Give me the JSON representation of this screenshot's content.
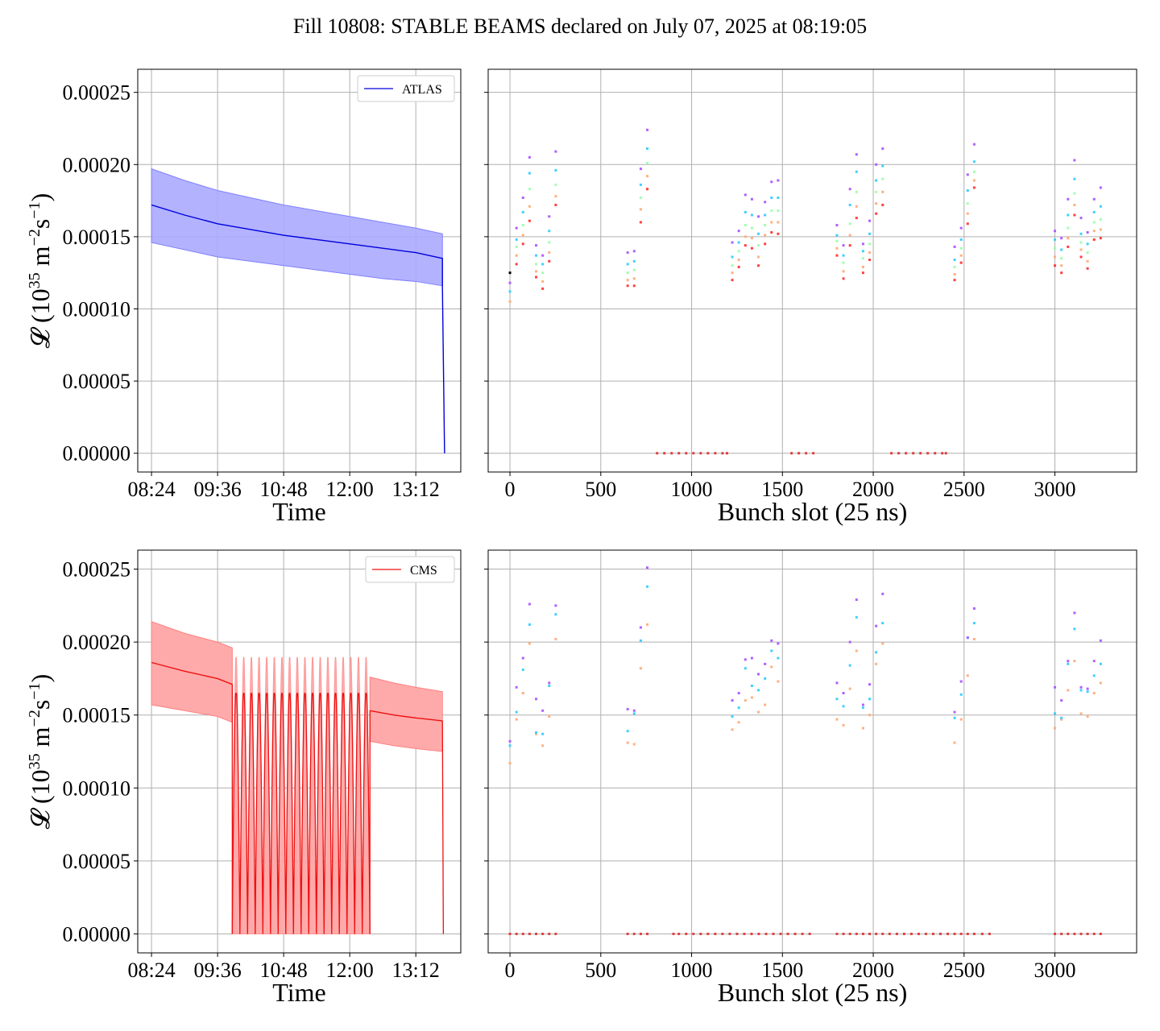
{
  "figure": {
    "title": "Fill 10808: STABLE BEAMS declared on July 07, 2025 at 08:19:05"
  },
  "colors": {
    "atlas": "#0000dd",
    "atlas_band": "#aaaaff",
    "cms": "#ee1111",
    "cms_band": "#ffaaaa",
    "grid": "#b0b0b0"
  },
  "chart_data": [
    {
      "type": "line",
      "legend": "ATLAS",
      "legend_position": "top-right",
      "xlabel": "Time",
      "ylabel_parts": [
        "𝓛 (10",
        "35",
        " m",
        "−2",
        "s",
        "−1",
        ")"
      ],
      "x_ticks": [
        "08:24",
        "09:36",
        "10:48",
        "12:00",
        "13:12"
      ],
      "y_ticks": [
        "0.00000",
        "0.00005",
        "0.00010",
        "0.00015",
        "0.00020",
        "0.00025"
      ],
      "ylim": [
        -1.3e-05,
        0.000266
      ],
      "xlim": [
        "08:09",
        "14:01"
      ],
      "grid": true,
      "series": [
        {
          "name": "ATLAS",
          "x": [
            "08:24",
            "09:00",
            "09:36",
            "10:12",
            "10:48",
            "11:24",
            "12:00",
            "12:36",
            "13:12",
            "13:41",
            "13:41",
            "13:42"
          ],
          "y": [
            0.000172,
            0.000165,
            0.000159,
            0.000155,
            0.000151,
            0.000148,
            0.000145,
            0.000142,
            0.000139,
            0.000135,
            0.000115,
            0.0
          ]
        },
        {
          "name": "ATLAS band upper",
          "x": [
            "08:24",
            "09:00",
            "09:36",
            "10:12",
            "10:48",
            "11:24",
            "12:00",
            "12:36",
            "13:12",
            "13:41"
          ],
          "y": [
            0.000197,
            0.000189,
            0.000182,
            0.000177,
            0.000172,
            0.000168,
            0.000164,
            0.00016,
            0.000156,
            0.000152
          ]
        },
        {
          "name": "ATLAS band lower",
          "x": [
            "08:24",
            "09:00",
            "09:36",
            "10:12",
            "10:48",
            "11:24",
            "12:00",
            "12:36",
            "13:12",
            "13:41"
          ],
          "y": [
            0.000146,
            0.000141,
            0.000136,
            0.000133,
            0.00013,
            0.000127,
            0.000124,
            0.000121,
            0.000119,
            0.000116
          ]
        }
      ]
    },
    {
      "type": "scatter",
      "xlabel": "Bunch slot (25 ns)",
      "x_ticks": [
        "0",
        "500",
        "1000",
        "1500",
        "2000",
        "2500",
        "3000"
      ],
      "xlim": [
        -120,
        3450
      ],
      "ylim": [
        -1.3e-05,
        0.000266
      ],
      "grid": true,
      "groups": [
        {
          "x": 0,
          "y": [
            0.000105,
            0.000112,
            0.000118,
            0.000125
          ]
        },
        {
          "x": 36,
          "y": [
            0.000131,
            0.000137,
            0.000143,
            0.000148,
            0.000156
          ]
        },
        {
          "x": 72,
          "y": [
            0.000145,
            0.000151,
            0.000158,
            0.000167,
            0.000177
          ]
        },
        {
          "x": 108,
          "y": [
            0.000161,
            0.000171,
            0.000183,
            0.000194,
            0.000205
          ]
        },
        {
          "x": 144,
          "y": [
            0.000122,
            0.000126,
            0.000131,
            0.000137,
            0.000144
          ]
        },
        {
          "x": 180,
          "y": [
            0.000114,
            0.000119,
            0.000125,
            0.000131,
            0.000137
          ]
        },
        {
          "x": 216,
          "y": [
            0.000133,
            0.000139,
            0.000146,
            0.000154,
            0.000164
          ]
        },
        {
          "x": 252,
          "y": [
            0.000172,
            0.000178,
            0.000186,
            0.000196,
            0.000209
          ]
        },
        {
          "x": 648,
          "y": [
            0.000116,
            0.00012,
            0.000125,
            0.000131,
            0.000139
          ]
        },
        {
          "x": 684,
          "y": [
            0.000116,
            0.000121,
            0.000127,
            0.000133,
            0.00014
          ]
        },
        {
          "x": 720,
          "y": [
            0.00016,
            0.000169,
            0.000177,
            0.000186,
            0.000197
          ]
        },
        {
          "x": 756,
          "y": [
            0.000183,
            0.000192,
            0.000201,
            0.000211,
            0.000224
          ]
        },
        {
          "x": 1224,
          "y": [
            0.00012,
            0.000125,
            0.00013,
            0.000136,
            0.000146
          ]
        },
        {
          "x": 1260,
          "y": [
            0.000129,
            0.000134,
            0.00014,
            0.000146,
            0.000154
          ]
        },
        {
          "x": 1296,
          "y": [
            0.000144,
            0.00015,
            0.000158,
            0.000167,
            0.000179
          ]
        },
        {
          "x": 1332,
          "y": [
            0.000142,
            0.000149,
            0.000156,
            0.000165,
            0.000176
          ]
        },
        {
          "x": 1368,
          "y": [
            0.00013,
            0.000136,
            0.000144,
            0.000152,
            0.000164
          ]
        },
        {
          "x": 1404,
          "y": [
            0.000145,
            0.000151,
            0.000158,
            0.000165,
            0.000174
          ]
        },
        {
          "x": 1440,
          "y": [
            0.000153,
            0.00016,
            0.000168,
            0.000177,
            0.000188
          ]
        },
        {
          "x": 1476,
          "y": [
            0.000152,
            0.00016,
            0.000168,
            0.000177,
            0.000189
          ]
        },
        {
          "x": 1800,
          "y": [
            0.000137,
            0.000142,
            0.000147,
            0.000151,
            0.000158
          ]
        },
        {
          "x": 1836,
          "y": [
            0.000121,
            0.000126,
            0.000132,
            0.000137,
            0.000144
          ]
        },
        {
          "x": 1872,
          "y": [
            0.000144,
            0.000151,
            0.000159,
            0.000172,
            0.000183
          ]
        },
        {
          "x": 1908,
          "y": [
            0.000163,
            0.000171,
            0.000181,
            0.000195,
            0.000207
          ]
        },
        {
          "x": 1944,
          "y": [
            0.000125,
            0.000129,
            0.000135,
            0.00014,
            0.000145
          ]
        },
        {
          "x": 1980,
          "y": [
            0.000134,
            0.000139,
            0.000145,
            0.000152,
            0.000161
          ]
        },
        {
          "x": 2016,
          "y": [
            0.000166,
            0.000173,
            0.000181,
            0.000189,
            0.0002
          ]
        },
        {
          "x": 2052,
          "y": [
            0.000172,
            0.000181,
            0.00019,
            0.000199,
            0.000211
          ]
        },
        {
          "x": 2448,
          "y": [
            0.00012,
            0.000124,
            0.000129,
            0.000134,
            0.000143
          ]
        },
        {
          "x": 2484,
          "y": [
            0.000132,
            0.000137,
            0.000142,
            0.000148,
            0.000156
          ]
        },
        {
          "x": 2520,
          "y": [
            0.000159,
            0.000166,
            0.000173,
            0.000182,
            0.000193
          ]
        },
        {
          "x": 2556,
          "y": [
            0.000184,
            0.000189,
            0.000195,
            0.000202,
            0.000214
          ]
        },
        {
          "x": 3000,
          "y": [
            0.00013,
            0.000136,
            0.000142,
            0.000148,
            0.000154
          ]
        },
        {
          "x": 3036,
          "y": [
            0.000125,
            0.00013,
            0.000135,
            0.000141,
            0.000149
          ]
        },
        {
          "x": 3072,
          "y": [
            0.000143,
            0.000149,
            0.000156,
            0.000165,
            0.000176
          ]
        },
        {
          "x": 3108,
          "y": [
            0.000165,
            0.000172,
            0.00018,
            0.00019,
            0.000203
          ]
        },
        {
          "x": 3144,
          "y": [
            0.000136,
            0.000141,
            0.000146,
            0.000152,
            0.000163
          ]
        },
        {
          "x": 3180,
          "y": [
            0.000128,
            0.000133,
            0.000139,
            0.000145,
            0.000153
          ]
        },
        {
          "x": 3216,
          "y": [
            0.000148,
            0.000154,
            0.00016,
            0.000167,
            0.000176
          ]
        },
        {
          "x": 3252,
          "y": [
            0.000149,
            0.000155,
            0.000162,
            0.000171,
            0.000184
          ]
        }
      ],
      "zeros": [
        810,
        850,
        890,
        930,
        970,
        1010,
        1050,
        1090,
        1130,
        1170,
        1195,
        1550,
        1590,
        1630,
        1670,
        2100,
        2140,
        2180,
        2220,
        2260,
        2300,
        2340,
        2380,
        2400
      ]
    },
    {
      "type": "line",
      "legend": "CMS",
      "legend_position": "top-right",
      "xlabel": "Time",
      "ylabel_parts": [
        "𝓛 (10",
        "35",
        " m",
        "−2",
        "s",
        "−1",
        ")"
      ],
      "x_ticks": [
        "08:24",
        "09:36",
        "10:48",
        "12:00",
        "13:12"
      ],
      "y_ticks": [
        "0.00000",
        "0.00005",
        "0.00010",
        "0.00015",
        "0.00020",
        "0.00025"
      ],
      "ylim": [
        -1.3e-05,
        0.000263
      ],
      "xlim": [
        "08:09",
        "14:01"
      ],
      "grid": true,
      "stable": [
        {
          "x": [
            "08:24",
            "09:00",
            "09:36",
            "09:52"
          ],
          "y": [
            0.000186,
            0.00018,
            0.000175,
            0.000171
          ]
        },
        {
          "x": [
            "12:22",
            "12:48",
            "13:12",
            "13:41"
          ],
          "y": [
            0.000153,
            0.00015,
            0.000148,
            0.000146
          ]
        }
      ],
      "band_upper": [
        {
          "x": [
            "08:24",
            "09:00",
            "09:36",
            "09:52"
          ],
          "y": [
            0.000214,
            0.000206,
            0.0002,
            0.000196
          ]
        },
        {
          "x": [
            "12:22",
            "12:48",
            "13:12",
            "13:41"
          ],
          "y": [
            0.000176,
            0.000172,
            0.000169,
            0.000166
          ]
        }
      ],
      "band_lower": [
        {
          "x": [
            "08:24",
            "09:00",
            "09:36",
            "09:52"
          ],
          "y": [
            0.000157,
            0.000153,
            0.000149,
            0.000145
          ]
        },
        {
          "x": [
            "12:22",
            "12:48",
            "13:12",
            "13:41"
          ],
          "y": [
            0.000132,
            0.000129,
            0.000127,
            0.000125
          ]
        }
      ],
      "oscillation": {
        "x_start": "09:52",
        "x_end": "12:22",
        "cycles": 18,
        "peak": 0.000163,
        "band_peak": 0.000188
      },
      "end_drop": {
        "x": "13:42",
        "y": 0.0
      }
    },
    {
      "type": "scatter",
      "xlabel": "Bunch slot (25 ns)",
      "x_ticks": [
        "0",
        "500",
        "1000",
        "1500",
        "2000",
        "2500",
        "3000"
      ],
      "xlim": [
        -120,
        3450
      ],
      "ylim": [
        -1.3e-05,
        0.000263
      ],
      "grid": true,
      "groups": [
        {
          "x": 0,
          "y": [
            0.000117,
            0.000129,
            0.000132
          ]
        },
        {
          "x": 36,
          "y": [
            0.000147,
            0.000152,
            0.000169
          ]
        },
        {
          "x": 72,
          "y": [
            0.000165,
            0.000181,
            0.000189
          ]
        },
        {
          "x": 108,
          "y": [
            0.000199,
            0.000212,
            0.000226
          ]
        },
        {
          "x": 144,
          "y": [
            0.000137,
            0.000138,
            0.000161
          ]
        },
        {
          "x": 180,
          "y": [
            0.000129,
            0.000137,
            0.000153
          ]
        },
        {
          "x": 216,
          "y": [
            0.000149,
            0.00017,
            0.000172
          ]
        },
        {
          "x": 252,
          "y": [
            0.000202,
            0.000219,
            0.000225
          ]
        },
        {
          "x": 648,
          "y": [
            0.000131,
            0.000139,
            0.000154
          ]
        },
        {
          "x": 684,
          "y": [
            0.00013,
            0.000151,
            0.000153
          ]
        },
        {
          "x": 720,
          "y": [
            0.000182,
            0.000201,
            0.00021
          ]
        },
        {
          "x": 756,
          "y": [
            0.000212,
            0.000238,
            0.000251
          ]
        },
        {
          "x": 1224,
          "y": [
            0.00014,
            0.000149,
            0.00016
          ]
        },
        {
          "x": 1260,
          "y": [
            0.000145,
            0.000155,
            0.000165
          ]
        },
        {
          "x": 1296,
          "y": [
            0.00016,
            0.000182,
            0.000188
          ]
        },
        {
          "x": 1332,
          "y": [
            0.000162,
            0.00017,
            0.000189
          ]
        },
        {
          "x": 1368,
          "y": [
            0.000152,
            0.000167,
            0.000178
          ]
        },
        {
          "x": 1404,
          "y": [
            0.000157,
            0.000175,
            0.000185
          ]
        },
        {
          "x": 1440,
          "y": [
            0.000183,
            0.000194,
            0.000201
          ]
        },
        {
          "x": 1476,
          "y": [
            0.000173,
            0.000189,
            0.000199
          ]
        },
        {
          "x": 1800,
          "y": [
            0.000147,
            0.000161,
            0.000172
          ]
        },
        {
          "x": 1836,
          "y": [
            0.000143,
            0.000156,
            0.000165
          ]
        },
        {
          "x": 1872,
          "y": [
            0.000168,
            0.000184,
            0.0002
          ]
        },
        {
          "x": 1908,
          "y": [
            0.000194,
            0.000217,
            0.000229
          ]
        },
        {
          "x": 1944,
          "y": [
            0.000141,
            0.000155,
            0.000157
          ]
        },
        {
          "x": 1980,
          "y": [
            0.00015,
            0.000161,
            0.000171
          ]
        },
        {
          "x": 2016,
          "y": [
            0.000185,
            0.000193,
            0.000211
          ]
        },
        {
          "x": 2052,
          "y": [
            0.000199,
            0.000213,
            0.000233
          ]
        },
        {
          "x": 2448,
          "y": [
            0.000131,
            0.000148,
            0.000152
          ]
        },
        {
          "x": 2484,
          "y": [
            0.000147,
            0.000164,
            0.000173
          ]
        },
        {
          "x": 2520,
          "y": [
            0.000177,
            0.000203,
            0.000203
          ]
        },
        {
          "x": 2556,
          "y": [
            0.000202,
            0.000213,
            0.000223
          ]
        },
        {
          "x": 3000,
          "y": [
            0.000141,
            0.000151,
            0.000169
          ]
        },
        {
          "x": 3036,
          "y": [
            0.000147,
            0.000148,
            0.00016
          ]
        },
        {
          "x": 3072,
          "y": [
            0.000167,
            0.000185,
            0.000187
          ]
        },
        {
          "x": 3108,
          "y": [
            0.000187,
            0.000209,
            0.00022
          ]
        },
        {
          "x": 3144,
          "y": [
            0.000151,
            0.000167,
            0.000169
          ]
        },
        {
          "x": 3180,
          "y": [
            0.000149,
            0.000166,
            0.000168
          ]
        },
        {
          "x": 3216,
          "y": [
            0.000165,
            0.000177,
            0.000187
          ]
        },
        {
          "x": 3252,
          "y": [
            0.000172,
            0.000185,
            0.000201
          ]
        }
      ],
      "zeros": [
        0,
        36,
        72,
        108,
        144,
        180,
        216,
        252,
        648,
        684,
        720,
        756,
        900,
        930,
        970,
        1010,
        1050,
        1090,
        1130,
        1170,
        1210,
        1250,
        1290,
        1330,
        1370,
        1410,
        1450,
        1490,
        1530,
        1570,
        1610,
        1650,
        1800,
        1836,
        1872,
        1908,
        1944,
        1980,
        2016,
        2052,
        2090,
        2130,
        2170,
        2210,
        2250,
        2290,
        2330,
        2370,
        2410,
        2448,
        2484,
        2520,
        2556,
        2600,
        2640,
        3000,
        3036,
        3072,
        3108,
        3144,
        3180,
        3216,
        3252
      ]
    }
  ]
}
